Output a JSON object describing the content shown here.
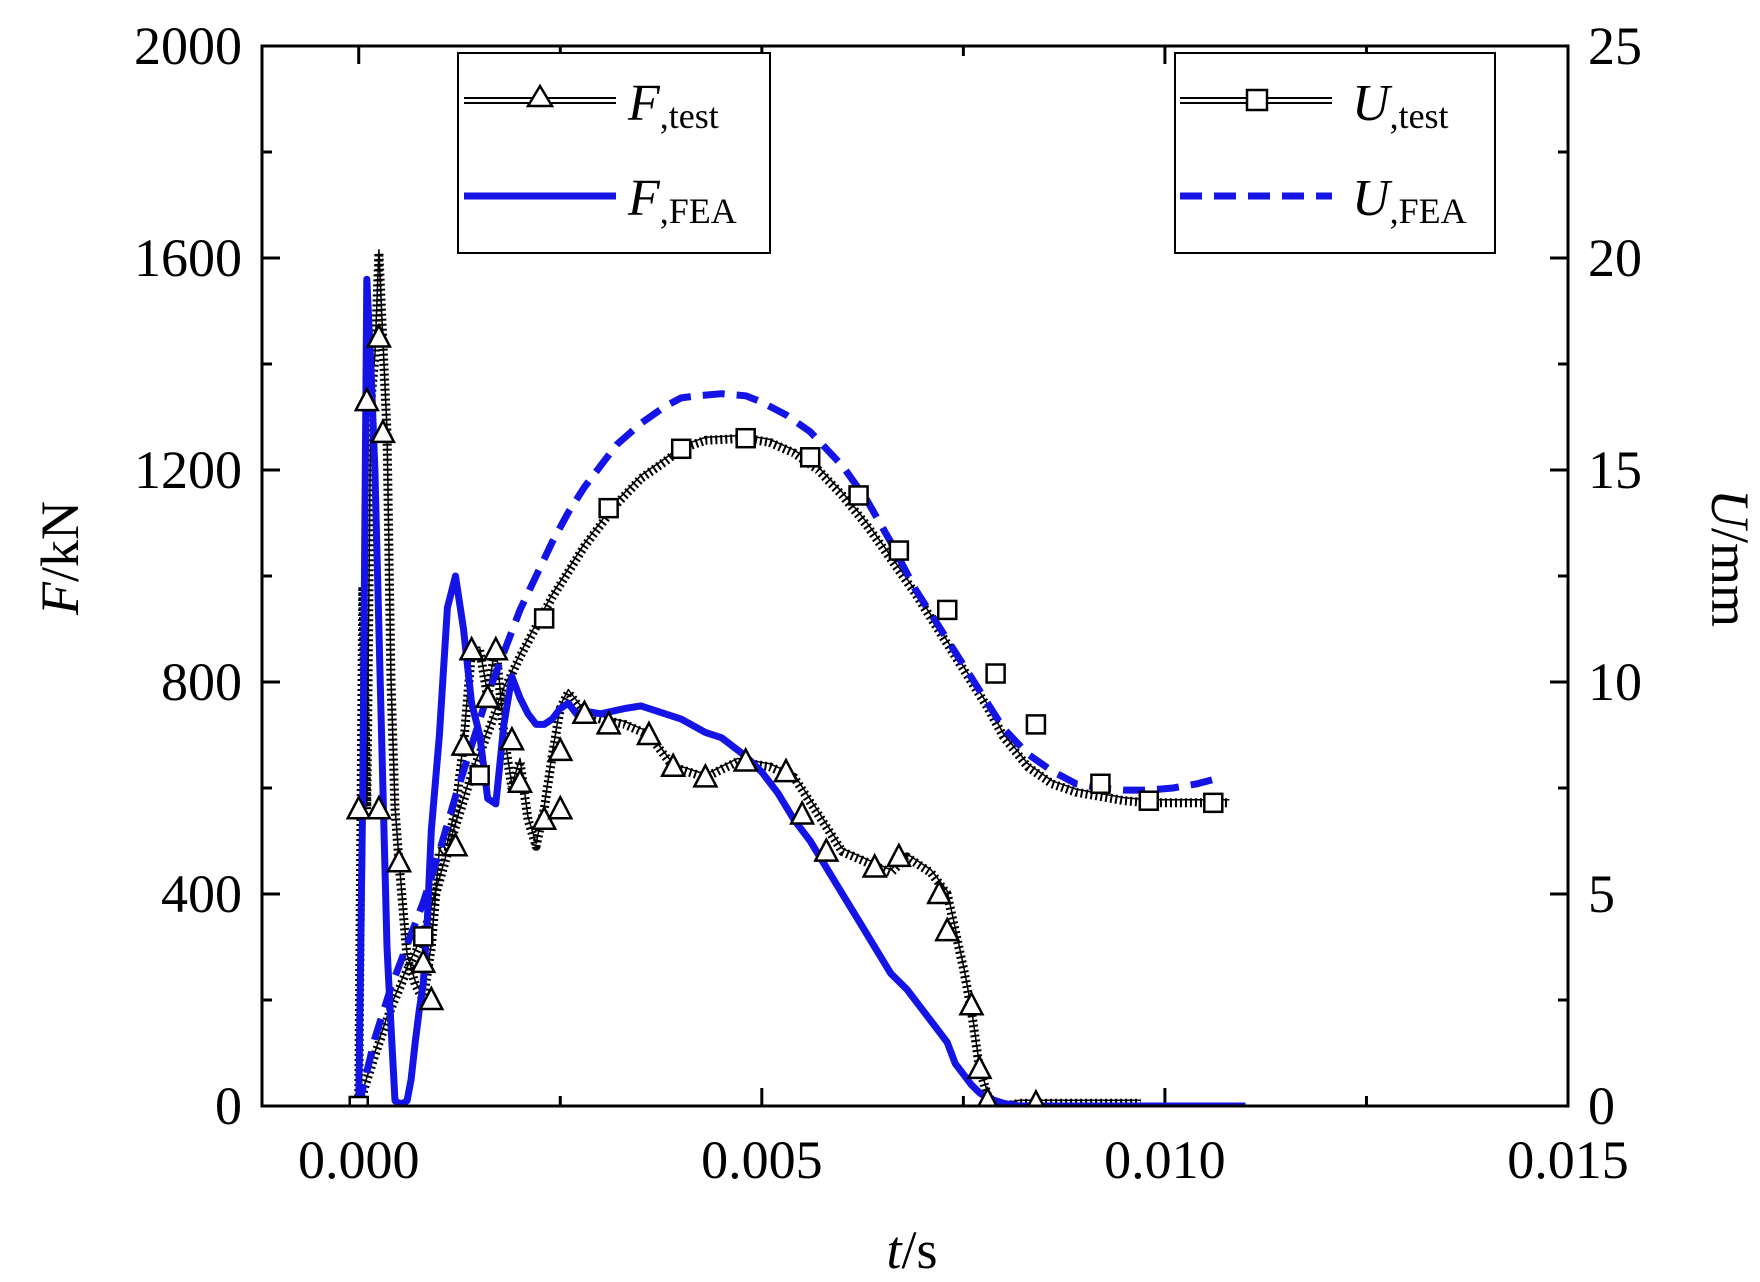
{
  "chart_data": {
    "type": "line",
    "x_axis": {
      "label_var": "t",
      "label_unit": "/s",
      "range": [
        -0.0012,
        0.015
      ],
      "ticks": [
        0.0,
        0.005,
        0.01,
        0.015
      ],
      "tick_labels": [
        "0.000",
        "0.005",
        "0.010",
        "0.015"
      ]
    },
    "y_left": {
      "label_var": "F",
      "label_unit": "/kN",
      "range": [
        0,
        2000
      ],
      "ticks": [
        0,
        400,
        800,
        1200,
        1600,
        2000
      ],
      "tick_labels": [
        "0",
        "400",
        "800",
        "1200",
        "1600",
        "2000"
      ]
    },
    "y_right": {
      "label_var": "U",
      "label_unit": "/mm",
      "range": [
        0,
        25
      ],
      "ticks": [
        0,
        5,
        10,
        15,
        20,
        25
      ],
      "tick_labels": [
        "0",
        "5",
        "10",
        "15",
        "20",
        "25"
      ]
    },
    "legend_left": [
      {
        "var": "F",
        "sub": ",test",
        "series": "F_test"
      },
      {
        "var": "F",
        "sub": ",FEA",
        "series": "F_FEA"
      }
    ],
    "legend_right": [
      {
        "var": "U",
        "sub": ",test",
        "series": "U_test"
      },
      {
        "var": "U",
        "sub": ",FEA",
        "series": "U_FEA"
      }
    ],
    "series": [
      {
        "name": "F_test",
        "axis": "left",
        "style": "dotted-triangle",
        "color": "#000000",
        "x": [
          0.0,
          5e-05,
          0.0001,
          0.00015,
          0.0002,
          0.00025,
          0.0003,
          0.00035,
          0.0004,
          0.00045,
          0.0005,
          0.0006,
          0.0007,
          0.0008,
          0.0009,
          0.001,
          0.0011,
          0.0012,
          0.0013,
          0.0014,
          0.0015,
          0.0016,
          0.0017,
          0.0018,
          0.0019,
          0.002,
          0.0021,
          0.0022,
          0.0023,
          0.0024,
          0.0025,
          0.0026,
          0.0028,
          0.003,
          0.0033,
          0.0036,
          0.0039,
          0.0043,
          0.0047,
          0.0051,
          0.0054,
          0.0057,
          0.006,
          0.0063,
          0.0066,
          0.0068,
          0.0071,
          0.0073,
          0.0074,
          0.0075,
          0.0076,
          0.0077,
          0.0078,
          0.0079,
          0.008,
          0.0082,
          0.0085,
          0.009,
          0.0097
        ],
        "y": [
          0,
          980,
          560,
          1330,
          1410,
          1610,
          1440,
          1270,
          800,
          560,
          460,
          280,
          230,
          200,
          300,
          480,
          490,
          560,
          680,
          860,
          860,
          770,
          870,
          700,
          600,
          650,
          540,
          490,
          560,
          660,
          750,
          780,
          740,
          730,
          720,
          700,
          640,
          620,
          650,
          640,
          620,
          550,
          480,
          460,
          440,
          470,
          440,
          400,
          330,
          260,
          180,
          70,
          20,
          0,
          0,
          5,
          5,
          5,
          5
        ]
      },
      {
        "name": "F_FEA",
        "axis": "left",
        "style": "solid",
        "color": "#1414e6",
        "x": [
          0.0,
          5e-05,
          0.0001,
          0.00015,
          0.0002,
          0.00025,
          0.0003,
          0.00035,
          0.0004,
          0.00045,
          0.0005,
          0.00055,
          0.0006,
          0.00065,
          0.0007,
          0.00075,
          0.0008,
          0.00085,
          0.0009,
          0.001,
          0.0011,
          0.0012,
          0.0013,
          0.0014,
          0.0015,
          0.0016,
          0.0017,
          0.0018,
          0.0019,
          0.002,
          0.0021,
          0.0022,
          0.0023,
          0.0024,
          0.0025,
          0.0026,
          0.0027,
          0.0028,
          0.003,
          0.0033,
          0.0035,
          0.0038,
          0.004,
          0.0043,
          0.0045,
          0.0048,
          0.005,
          0.0052,
          0.0054,
          0.0056,
          0.0058,
          0.006,
          0.0062,
          0.0064,
          0.0066,
          0.0068,
          0.007,
          0.0072,
          0.0073,
          0.0074,
          0.0075,
          0.0076,
          0.0077,
          0.0078,
          0.0079,
          0.008,
          0.0081,
          0.0082,
          0.0084,
          0.0086,
          0.009,
          0.0095,
          0.01,
          0.0105,
          0.011
        ],
        "y": [
          0,
          600,
          1560,
          1400,
          1200,
          900,
          600,
          300,
          150,
          10,
          5,
          5,
          10,
          50,
          120,
          180,
          230,
          350,
          520,
          700,
          940,
          1000,
          900,
          760,
          700,
          580,
          570,
          720,
          810,
          770,
          740,
          720,
          720,
          730,
          750,
          760,
          740,
          745,
          740,
          750,
          755,
          740,
          730,
          705,
          695,
          660,
          630,
          590,
          540,
          500,
          450,
          400,
          350,
          300,
          250,
          220,
          180,
          140,
          120,
          80,
          60,
          40,
          25,
          15,
          10,
          5,
          2,
          0,
          0,
          0,
          0,
          0,
          0,
          0,
          0
        ]
      },
      {
        "name": "U_test",
        "axis": "right",
        "style": "dotted-square",
        "color": "#000000",
        "x": [
          0.0,
          0.0002,
          0.0004,
          0.0006,
          0.0008,
          0.001,
          0.0012,
          0.0014,
          0.0016,
          0.0018,
          0.002,
          0.0022,
          0.0024,
          0.0026,
          0.0028,
          0.003,
          0.0032,
          0.0035,
          0.0038,
          0.004,
          0.0043,
          0.0045,
          0.0048,
          0.0051,
          0.0054,
          0.0057,
          0.006,
          0.0063,
          0.0066,
          0.0069,
          0.0072,
          0.0075,
          0.0078,
          0.008,
          0.0083,
          0.0086,
          0.0089,
          0.0092,
          0.0095,
          0.0098,
          0.0101,
          0.0104,
          0.0106,
          0.0108
        ],
        "y": [
          0,
          1.2,
          2.3,
          3.2,
          4.0,
          5.3,
          6.6,
          7.8,
          8.8,
          9.8,
          10.6,
          11.3,
          12.0,
          12.6,
          13.2,
          13.7,
          14.2,
          14.8,
          15.2,
          15.5,
          15.7,
          15.72,
          15.75,
          15.65,
          15.4,
          15.0,
          14.4,
          13.7,
          12.9,
          12.1,
          11.2,
          10.3,
          9.4,
          8.7,
          8.0,
          7.6,
          7.4,
          7.3,
          7.2,
          7.15,
          7.15,
          7.15,
          7.15,
          7.15
        ]
      },
      {
        "name": "U_FEA",
        "axis": "right",
        "style": "dashed",
        "color": "#1414e6",
        "x": [
          0.0,
          0.0002,
          0.0004,
          0.0006,
          0.0008,
          0.001,
          0.0012,
          0.0014,
          0.0016,
          0.0018,
          0.002,
          0.0022,
          0.0024,
          0.0026,
          0.0028,
          0.003,
          0.0032,
          0.0035,
          0.0038,
          0.004,
          0.0042,
          0.0045,
          0.0048,
          0.005,
          0.0053,
          0.0056,
          0.006,
          0.0063,
          0.0066,
          0.0069,
          0.0072,
          0.0075,
          0.0078,
          0.008,
          0.0083,
          0.0086,
          0.0089,
          0.0092,
          0.0095,
          0.0098,
          0.0101,
          0.0104,
          0.0106
        ],
        "y": [
          0,
          1.6,
          2.8,
          3.8,
          4.8,
          6.0,
          7.3,
          8.5,
          9.7,
          10.7,
          11.7,
          12.5,
          13.3,
          14.0,
          14.6,
          15.1,
          15.6,
          16.1,
          16.5,
          16.7,
          16.75,
          16.8,
          16.75,
          16.6,
          16.3,
          15.9,
          15.1,
          14.3,
          13.3,
          12.2,
          11.3,
          10.4,
          9.5,
          8.9,
          8.3,
          7.9,
          7.6,
          7.5,
          7.45,
          7.45,
          7.5,
          7.6,
          7.7
        ]
      }
    ],
    "markers": {
      "F_test_triangles": [
        [
          0.0,
          560
        ],
        [
          0.0001,
          1330
        ],
        [
          0.00025,
          1450
        ],
        [
          0.0003,
          1270
        ],
        [
          0.00025,
          560
        ],
        [
          0.0005,
          460
        ],
        [
          0.0008,
          270
        ],
        [
          0.0009,
          200
        ],
        [
          0.0012,
          490
        ],
        [
          0.0013,
          680
        ],
        [
          0.0014,
          860
        ],
        [
          0.0016,
          770
        ],
        [
          0.0017,
          860
        ],
        [
          0.0019,
          690
        ],
        [
          0.002,
          610
        ],
        [
          0.0023,
          540
        ],
        [
          0.0025,
          560
        ],
        [
          0.0025,
          670
        ],
        [
          0.0028,
          740
        ],
        [
          0.0031,
          720
        ],
        [
          0.0036,
          700
        ],
        [
          0.0039,
          640
        ],
        [
          0.0043,
          620
        ],
        [
          0.0048,
          650
        ],
        [
          0.0053,
          630
        ],
        [
          0.0055,
          550
        ],
        [
          0.0058,
          480
        ],
        [
          0.0064,
          450
        ],
        [
          0.0067,
          470
        ],
        [
          0.0072,
          400
        ],
        [
          0.0073,
          330
        ],
        [
          0.0076,
          190
        ],
        [
          0.0077,
          70
        ],
        [
          0.0078,
          10
        ],
        [
          0.0084,
          5
        ]
      ],
      "U_test_squares": [
        [
          0.0,
          0.0
        ],
        [
          0.0008,
          4.0
        ],
        [
          0.0015,
          7.8
        ],
        [
          0.0023,
          11.5
        ],
        [
          0.0031,
          14.1
        ],
        [
          0.004,
          15.5
        ],
        [
          0.0048,
          15.75
        ],
        [
          0.0056,
          15.3
        ],
        [
          0.0062,
          14.4
        ],
        [
          0.0067,
          13.1
        ],
        [
          0.0073,
          11.7
        ],
        [
          0.0079,
          10.2
        ],
        [
          0.0084,
          9.0
        ],
        [
          0.0092,
          7.6
        ],
        [
          0.0098,
          7.2
        ],
        [
          0.0106,
          7.15
        ]
      ]
    }
  }
}
